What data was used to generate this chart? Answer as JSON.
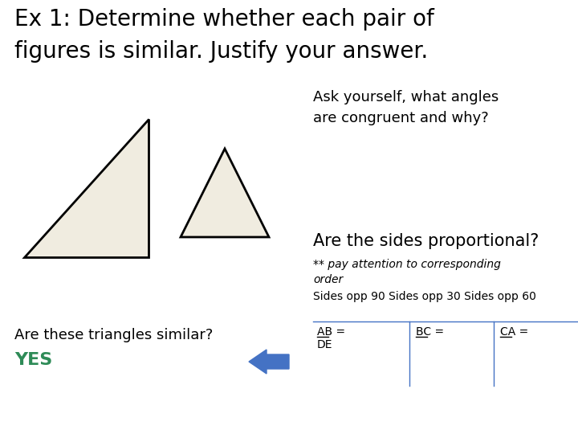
{
  "title_line1": "Ex 1: Determine whether each pair of",
  "title_line2": "figures is similar. Justify your answer.",
  "ask_text": "Ask yourself, what angles\nare congruent and why?",
  "proportional_text": "Are the sides proportional?",
  "italic_text": "** pay attention to corresponding\norder",
  "sides_text": "Sides opp 90 Sides opp 30 Sides opp 60",
  "similar_question": "Are these triangles similar?",
  "yes_text": "YES",
  "yes_color": "#2e8b57",
  "fraction_ab": "AB =",
  "fraction_de": "DE",
  "fraction_bc": "BC =",
  "fraction_ca": "CA =",
  "bg_color": "#ffffff",
  "triangle1_fill": "#f0ece0",
  "triangle2_fill": "#f0ece0",
  "triangle1_edge": "#000000",
  "triangle2_edge": "#000000",
  "arrow_color": "#4472c4",
  "title_fontsize": 20,
  "ask_fontsize": 13,
  "proportional_fontsize": 15,
  "italic_fontsize": 10,
  "sides_fontsize": 10,
  "body_fontsize": 13,
  "small_fontsize": 10,
  "yes_fontsize": 16
}
